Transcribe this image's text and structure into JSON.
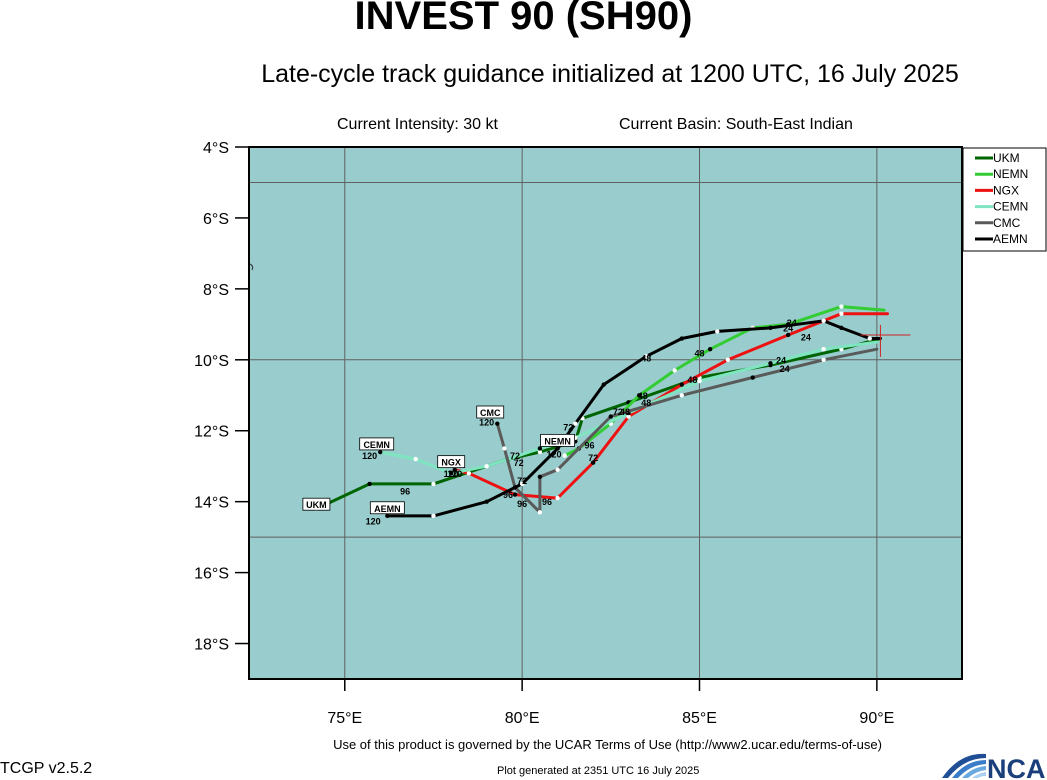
{
  "header": {
    "title": "INVEST 90 (SH90)",
    "subtitle": "Late-cycle track guidance initialized at 1200 UTC, 16 July 2025",
    "intensity": "Current Intensity: 30 kt",
    "basin": "Current Basin: South-East Indian"
  },
  "footer": {
    "terms": "Use of this product is governed by the UCAR Terms of Use (http://www2.ucar.edu/terms-of-use)",
    "version": "TCGP v2.5.2",
    "generated": "Plot generated at 2351 UTC   16 July 2025",
    "logo_text": "NCAR"
  },
  "colors": {
    "ocean": "#99cdcd",
    "grid": "#606060",
    "frame": "#000000"
  },
  "chart_data": {
    "type": "line",
    "xlim": [
      72.3,
      92.4
    ],
    "ylim": [
      -19,
      -4
    ],
    "x_ticks": [
      75,
      80,
      85,
      90
    ],
    "x_tick_labels": [
      "75°E",
      "80°E",
      "85°E",
      "90°E"
    ],
    "y_ticks": [
      -4,
      -6,
      -8,
      -10,
      -12,
      -14,
      -16,
      -18
    ],
    "y_tick_labels": [
      "4°S",
      "6°S",
      "8°S",
      "10°S",
      "12°S",
      "14°S",
      "16°S",
      "18°S"
    ],
    "x_grid": [
      75,
      80,
      85,
      90
    ],
    "y_grid": [
      -5,
      -10,
      -15
    ],
    "legend_position": "top-right",
    "current_position": [
      90.1,
      -9.3
    ],
    "series": [
      {
        "name": "UKM",
        "color": "#006400",
        "points": [
          [
            90.1,
            -9.4
          ],
          [
            89.0,
            -9.7
          ],
          [
            87.0,
            -10.15
          ],
          [
            85.0,
            -10.5
          ],
          [
            83.0,
            -11.2
          ],
          [
            81.7,
            -11.65
          ],
          [
            81.5,
            -12.3
          ],
          [
            80.5,
            -12.6
          ],
          [
            79.6,
            -12.8
          ],
          [
            77.5,
            -13.5
          ],
          [
            75.7,
            -13.5
          ],
          [
            74.2,
            -14.2
          ]
        ],
        "label": "UKM",
        "label_at": [
          74.2,
          -14.1
        ]
      },
      {
        "name": "NEMN",
        "color": "#33cc33",
        "points": [
          [
            90.2,
            -8.6
          ],
          [
            89.0,
            -8.5
          ],
          [
            87.5,
            -9.0
          ],
          [
            86.5,
            -9.1
          ],
          [
            85.3,
            -9.7
          ],
          [
            84.3,
            -10.3
          ],
          [
            83.3,
            -11.0
          ],
          [
            82.5,
            -11.8
          ],
          [
            81.6,
            -12.5
          ],
          [
            81.2,
            -12.7
          ]
        ],
        "label": "NEMN",
        "label_at": [
          81.0,
          -12.3
        ]
      },
      {
        "name": "NGX",
        "color": "#ee1111",
        "points": [
          [
            90.3,
            -8.7
          ],
          [
            89.0,
            -8.7
          ],
          [
            87.5,
            -9.3
          ],
          [
            85.8,
            -10.0
          ],
          [
            84.5,
            -10.7
          ],
          [
            83.0,
            -11.6
          ],
          [
            82.0,
            -12.9
          ],
          [
            81.0,
            -13.9
          ],
          [
            79.8,
            -13.8
          ],
          [
            78.5,
            -13.2
          ],
          [
            78.1,
            -13.1
          ]
        ],
        "label": "NGX",
        "label_at": [
          78.0,
          -12.9
        ]
      },
      {
        "name": "CEMN",
        "color": "#7fe5c0",
        "points": [
          [
            90.0,
            -9.5
          ],
          [
            88.5,
            -9.7
          ],
          [
            87.0,
            -10.1
          ],
          [
            85.0,
            -10.6
          ],
          [
            83.0,
            -11.5
          ],
          [
            81.5,
            -12.2
          ],
          [
            80.5,
            -12.5
          ],
          [
            79.0,
            -13.0
          ],
          [
            78.0,
            -13.2
          ],
          [
            77.0,
            -12.8
          ],
          [
            76.0,
            -12.6
          ]
        ],
        "label": "CEMN",
        "label_at": [
          75.9,
          -12.4
        ]
      },
      {
        "name": "CMC",
        "color": "#5a5a5a",
        "points": [
          [
            90.0,
            -9.7
          ],
          [
            88.5,
            -10.0
          ],
          [
            86.5,
            -10.5
          ],
          [
            84.5,
            -11.0
          ],
          [
            82.5,
            -11.6
          ],
          [
            81.0,
            -13.1
          ],
          [
            80.5,
            -13.3
          ],
          [
            80.5,
            -14.3
          ],
          [
            79.8,
            -13.6
          ],
          [
            79.5,
            -12.5
          ],
          [
            79.3,
            -11.8
          ]
        ],
        "label": "CMC",
        "label_at": [
          79.1,
          -11.5
        ]
      },
      {
        "name": "AEMN",
        "color": "#000000",
        "points": [
          [
            90.1,
            -9.4
          ],
          [
            89.8,
            -9.4
          ],
          [
            89.0,
            -9.1
          ],
          [
            88.5,
            -8.9
          ],
          [
            87.0,
            -9.1
          ],
          [
            85.5,
            -9.2
          ],
          [
            84.5,
            -9.4
          ],
          [
            83.5,
            -9.9
          ],
          [
            82.3,
            -10.7
          ],
          [
            81.5,
            -11.8
          ],
          [
            81.0,
            -12.5
          ],
          [
            80.0,
            -13.5
          ],
          [
            79.0,
            -14.0
          ],
          [
            77.5,
            -14.4
          ],
          [
            76.2,
            -14.4
          ]
        ],
        "label": "AEMN",
        "label_at": [
          76.2,
          -14.2
        ]
      }
    ],
    "hour_labels": [
      {
        "text": "24",
        "at": [
          87.5,
          -9.2
        ]
      },
      {
        "text": "24",
        "at": [
          88.0,
          -9.45
        ]
      },
      {
        "text": "24",
        "at": [
          87.6,
          -9.05
        ]
      },
      {
        "text": "24",
        "at": [
          87.3,
          -10.1
        ]
      },
      {
        "text": "24",
        "at": [
          87.4,
          -10.35
        ]
      },
      {
        "text": "48",
        "at": [
          83.5,
          -10.05
        ]
      },
      {
        "text": "48",
        "at": [
          85.0,
          -9.9
        ]
      },
      {
        "text": "48",
        "at": [
          84.8,
          -10.65
        ]
      },
      {
        "text": "48",
        "at": [
          83.4,
          -11.1
        ]
      },
      {
        "text": "48",
        "at": [
          83.5,
          -11.3
        ]
      },
      {
        "text": "48",
        "at": [
          82.9,
          -11.55
        ]
      },
      {
        "text": "72",
        "at": [
          81.3,
          -12.0
        ]
      },
      {
        "text": "72",
        "at": [
          79.8,
          -12.8
        ]
      },
      {
        "text": "72",
        "at": [
          79.9,
          -13.0
        ]
      },
      {
        "text": "72",
        "at": [
          80.0,
          -13.5
        ]
      },
      {
        "text": "72",
        "at": [
          82.0,
          -12.85
        ]
      },
      {
        "text": "72",
        "at": [
          82.7,
          -11.55
        ]
      },
      {
        "text": "96",
        "at": [
          76.7,
          -13.8
        ]
      },
      {
        "text": "96",
        "at": [
          79.6,
          -13.9
        ]
      },
      {
        "text": "96",
        "at": [
          80.0,
          -14.15
        ]
      },
      {
        "text": "96",
        "at": [
          80.7,
          -14.1
        ]
      },
      {
        "text": "96",
        "at": [
          81.9,
          -12.5
        ]
      },
      {
        "text": "120",
        "at": [
          78.0,
          -13.3
        ]
      },
      {
        "text": "120",
        "at": [
          79.0,
          -11.85
        ]
      },
      {
        "text": "120",
        "at": [
          75.7,
          -12.8
        ]
      },
      {
        "text": "120",
        "at": [
          75.8,
          -14.65
        ]
      },
      {
        "text": "120",
        "at": [
          80.9,
          -12.75
        ]
      },
      {
        "text": "120",
        "at": [
          78.1,
          -13.3
        ]
      }
    ]
  }
}
